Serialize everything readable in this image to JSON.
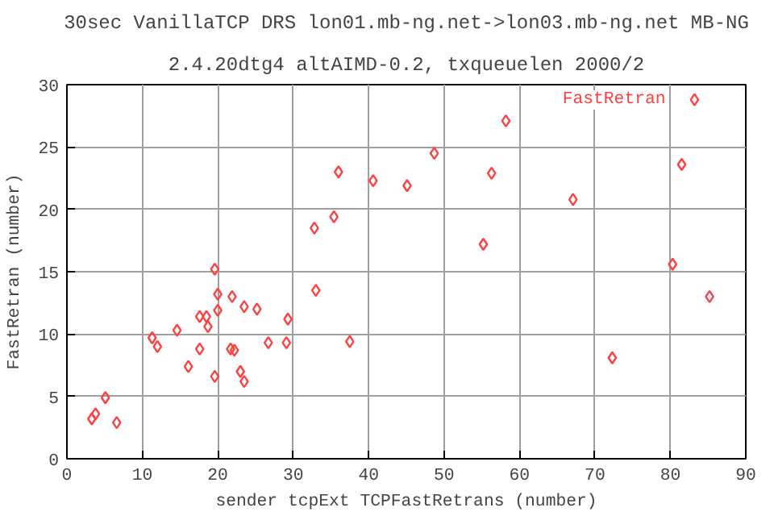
{
  "chart_data": {
    "type": "scatter",
    "title": "30sec VanillaTCP DRS lon01.mb-ng.net->lon03.mb-ng.net MB-NG",
    "subtitle": "2.4.20dtg4 altAIMD-0.2, txqueuelen 2000/2",
    "xlabel": "sender tcpExt TCPFastRetrans (number)",
    "ylabel": "FastRetran (number)",
    "xlim": [
      0,
      90
    ],
    "ylim": [
      0,
      30
    ],
    "xticks": [
      0,
      10,
      20,
      30,
      40,
      50,
      60,
      70,
      80,
      90
    ],
    "yticks": [
      0,
      5,
      10,
      15,
      20,
      25,
      30
    ],
    "grid": true,
    "legend": "top right",
    "marker": "diamond",
    "series": [
      {
        "name": "FastRetran",
        "color": "#ff4040",
        "x": [
          3.3,
          3.8,
          5.1,
          6.6,
          11.3,
          12.0,
          14.6,
          16.1,
          17.6,
          17.6,
          18.5,
          18.7,
          19.6,
          19.6,
          20.0,
          20.0,
          21.7,
          22.2,
          21.9,
          23.0,
          23.5,
          23.5,
          25.2,
          26.7,
          29.1,
          29.3,
          32.8,
          33.0,
          35.4,
          36.0,
          37.5,
          40.6,
          45.1,
          48.7,
          58.2,
          56.3,
          55.2,
          67.1,
          72.3,
          80.3,
          81.5,
          83.2,
          85.2
        ],
        "values": [
          3.2,
          3.6,
          4.9,
          2.9,
          9.7,
          9.0,
          10.3,
          7.4,
          11.4,
          8.8,
          11.4,
          10.6,
          15.2,
          6.6,
          13.2,
          11.9,
          8.8,
          8.7,
          13.0,
          7.0,
          12.2,
          6.2,
          12.0,
          9.3,
          9.3,
          11.2,
          18.5,
          13.5,
          19.4,
          23.0,
          9.4,
          22.3,
          21.9,
          24.5,
          27.1,
          22.9,
          17.2,
          20.8,
          8.1,
          15.6,
          23.6,
          28.8,
          13.0
        ]
      }
    ]
  }
}
